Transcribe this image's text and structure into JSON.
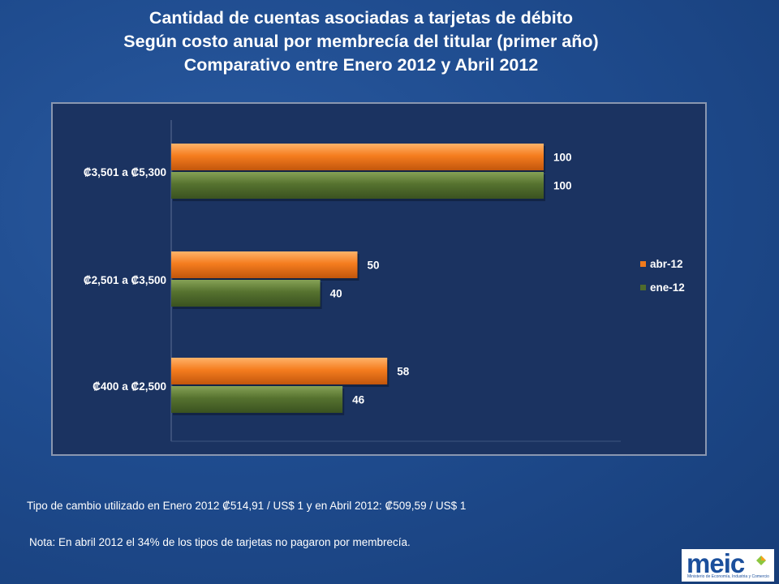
{
  "title": {
    "line1": "Cantidad de cuentas asociadas a tarjetas de débito",
    "line2": "Según costo anual por membrecía del titular (primer año)",
    "line3": "Comparativo entre  Enero  2012 y Abril 2012"
  },
  "chart_data": {
    "type": "bar",
    "orientation": "horizontal",
    "categories": [
      "₡3,501  a ₡5,300",
      "₡2,501  a ₡3,500",
      "₡400  a ₡2,500"
    ],
    "series": [
      {
        "name": "abr-12",
        "color": "#f07a1c",
        "values": [
          100,
          50,
          58
        ]
      },
      {
        "name": "ene-12",
        "color": "#4f6b2c",
        "values": [
          100,
          40,
          46
        ]
      }
    ],
    "xlim": [
      0,
      120
    ],
    "grid": false,
    "legend_position": "right"
  },
  "notes": {
    "exchange": "Tipo de cambio utilizado en  Enero 2012  ₡514,91 / US$ 1  y en Abril 2012: ₡509,59 / US$ 1",
    "membership": "Nota: En abril 2012 el  34% de los tipos de tarjetas no  pagaron  por membrecía."
  },
  "logo": {
    "text": "meic",
    "subtitle": "Ministerio de Economía, Industria y Comercio"
  }
}
